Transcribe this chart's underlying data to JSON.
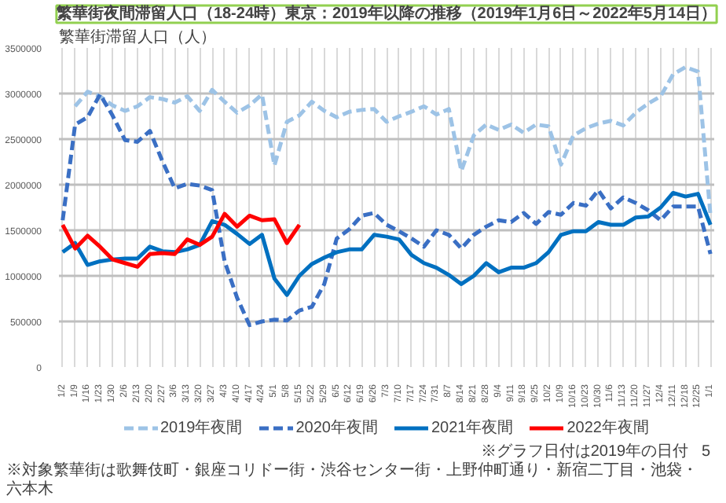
{
  "chart_data": {
    "type": "line",
    "title": "繁華街夜間滞留人口（18-24時）東京：2019年以降の推移（2019年1月6日～2022年5月14日）",
    "ylabel": "繁華街滞留人口（人）",
    "categories": [
      "1/2",
      "1/9",
      "1/16",
      "1/23",
      "1/30",
      "2/6",
      "2/13",
      "2/20",
      "2/27",
      "3/6",
      "3/13",
      "3/20",
      "3/27",
      "4/3",
      "4/10",
      "4/17",
      "4/24",
      "5/1",
      "5/8",
      "5/15",
      "5/22",
      "5/29",
      "6/5",
      "6/12",
      "6/19",
      "6/26",
      "7/3",
      "7/10",
      "7/17",
      "7/24",
      "7/31",
      "8/7",
      "8/14",
      "8/21",
      "8/28",
      "9/4",
      "9/11",
      "9/18",
      "9/25",
      "10/2",
      "10/9",
      "10/16",
      "10/23",
      "10/30",
      "11/6",
      "11/13",
      "11/20",
      "11/27",
      "12/4",
      "12/11",
      "12/18",
      "12/25",
      "1/1"
    ],
    "series": [
      {
        "name": "2019年夜間",
        "color": "#9dc3e6",
        "line_style": "dashed",
        "values": [
          null,
          2860000,
          3020000,
          2970000,
          2870000,
          2810000,
          2860000,
          2960000,
          2940000,
          2900000,
          2970000,
          2810000,
          3040000,
          2910000,
          2790000,
          2870000,
          2990000,
          2210000,
          2690000,
          2760000,
          2910000,
          2810000,
          2740000,
          2800000,
          2820000,
          2830000,
          2690000,
          2750000,
          2800000,
          2860000,
          2770000,
          2830000,
          2150000,
          2540000,
          2660000,
          2600000,
          2660000,
          2570000,
          2660000,
          2640000,
          2220000,
          2540000,
          2620000,
          2670000,
          2700000,
          2650000,
          2790000,
          2890000,
          2970000,
          3210000,
          3290000,
          3240000,
          1660000
        ]
      },
      {
        "name": "2020年夜間",
        "color": "#3a6fc4",
        "line_style": "dashed",
        "values": [
          1610000,
          2660000,
          2740000,
          2990000,
          2760000,
          2490000,
          2470000,
          2590000,
          2260000,
          1960000,
          2010000,
          1990000,
          1940000,
          1160000,
          760000,
          460000,
          500000,
          520000,
          510000,
          620000,
          660000,
          910000,
          1410000,
          1510000,
          1660000,
          1690000,
          1560000,
          1490000,
          1410000,
          1320000,
          1500000,
          1450000,
          1300000,
          1450000,
          1540000,
          1610000,
          1590000,
          1690000,
          1570000,
          1700000,
          1670000,
          1800000,
          1770000,
          1940000,
          1740000,
          1860000,
          1800000,
          1720000,
          1610000,
          1760000,
          1760000,
          1760000,
          1240000
        ]
      },
      {
        "name": "2021年夜間",
        "color": "#0070c0",
        "line_style": "solid",
        "values": [
          1260000,
          1360000,
          1120000,
          1160000,
          1180000,
          1190000,
          1190000,
          1320000,
          1270000,
          1260000,
          1290000,
          1340000,
          1600000,
          1560000,
          1460000,
          1350000,
          1450000,
          970000,
          790000,
          1000000,
          1130000,
          1200000,
          1260000,
          1290000,
          1290000,
          1450000,
          1430000,
          1400000,
          1230000,
          1140000,
          1090000,
          1010000,
          910000,
          1000000,
          1140000,
          1040000,
          1090000,
          1090000,
          1140000,
          1260000,
          1450000,
          1490000,
          1490000,
          1590000,
          1560000,
          1560000,
          1640000,
          1650000,
          1750000,
          1910000,
          1870000,
          1900000,
          1560000
        ]
      },
      {
        "name": "2022年夜間",
        "color": "#ff0000",
        "line_style": "solid",
        "values": [
          1560000,
          1300000,
          1440000,
          1320000,
          1180000,
          1140000,
          1100000,
          1240000,
          1250000,
          1240000,
          1400000,
          1340000,
          1430000,
          1680000,
          1540000,
          1660000,
          1610000,
          1620000,
          1360000,
          1560000,
          null,
          null,
          null,
          null,
          null,
          null,
          null,
          null,
          null,
          null,
          null,
          null,
          null,
          null,
          null,
          null,
          null,
          null,
          null,
          null,
          null,
          null,
          null,
          null,
          null,
          null,
          null,
          null,
          null,
          null,
          null,
          null,
          null
        ]
      }
    ],
    "ylim": [
      0,
      3500000
    ],
    "yticks": [
      0,
      500000,
      1000000,
      1500000,
      2000000,
      2500000,
      3000000,
      3500000
    ],
    "grid": true,
    "legend": "bottom",
    "annotations": [
      "※対象繁華街は歌舞伎町・銀座コリドー街・渋谷センター街・上野仲町通り・新宿二丁目・池袋・六本木",
      "※グラフ日付は2019年の日付",
      "5"
    ]
  }
}
